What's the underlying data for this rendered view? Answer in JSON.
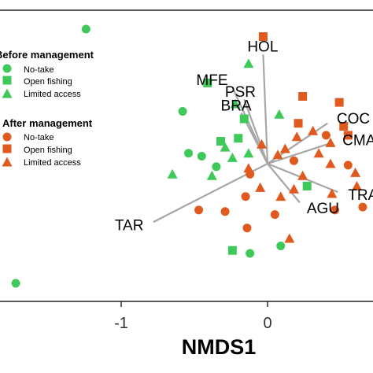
{
  "chart_data": {
    "type": "scatter",
    "title": "",
    "xlabel": "NMDS1",
    "ylabel": "",
    "xlim": [
      -1.85,
      0.65
    ],
    "ylim": [
      -1.1,
      1.0
    ],
    "x_ticks": [
      -1,
      0
    ],
    "x_tick_labels": [
      "-1",
      "0"
    ],
    "grid": false,
    "legend_position": "left",
    "colors": {
      "before": "#3ec95a",
      "after": "#e0591f",
      "vector": "#a6a6a6"
    },
    "legend": [
      {
        "title": "Before management",
        "entries": [
          {
            "label": "No-take",
            "shape": "circle"
          },
          {
            "label": "Open fishing",
            "shape": "square"
          },
          {
            "label": "Limited access",
            "shape": "triangle"
          }
        ]
      },
      {
        "title": "After management",
        "entries": [
          {
            "label": "No-take",
            "shape": "circle"
          },
          {
            "label": "Open fishing",
            "shape": "square"
          },
          {
            "label": "Limited access",
            "shape": "triangle"
          }
        ]
      }
    ],
    "series": [
      {
        "name": "Before management – No-take",
        "color": "#3ec95a",
        "shape": "circle",
        "points": [
          [
            -1.24,
            0.9
          ],
          [
            -1.72,
            -0.8
          ],
          [
            -0.58,
            0.35
          ],
          [
            -0.45,
            0.05
          ],
          [
            -0.54,
            0.07
          ],
          [
            -0.35,
            -0.02
          ],
          [
            -0.12,
            -0.6
          ],
          [
            0.09,
            -0.55
          ]
        ]
      },
      {
        "name": "Before management – Open fishing",
        "color": "#3ec95a",
        "shape": "square",
        "points": [
          [
            -0.41,
            0.54
          ],
          [
            -0.16,
            0.3
          ],
          [
            -0.2,
            0.17
          ],
          [
            -0.32,
            0.15
          ],
          [
            -0.24,
            -0.58
          ],
          [
            0.27,
            -0.15
          ]
        ]
      },
      {
        "name": "Before management – Limited access",
        "color": "#3ec95a",
        "shape": "triangle",
        "points": [
          [
            -0.13,
            0.67
          ],
          [
            -0.22,
            0.4
          ],
          [
            -0.29,
            0.11
          ],
          [
            -0.24,
            0.04
          ],
          [
            -0.65,
            -0.07
          ],
          [
            -0.38,
            -0.08
          ],
          [
            0.08,
            0.33
          ],
          [
            -0.13,
            0.07
          ]
        ]
      },
      {
        "name": "After management – No-take",
        "color": "#e0591f",
        "shape": "circle",
        "points": [
          [
            0.4,
            0.19
          ],
          [
            0.18,
            0.02
          ],
          [
            -0.12,
            -0.07
          ],
          [
            -0.15,
            -0.22
          ],
          [
            -0.47,
            -0.31
          ],
          [
            -0.29,
            -0.32
          ],
          [
            -0.14,
            -0.43
          ],
          [
            0.05,
            -0.34
          ],
          [
            0.46,
            -0.31
          ],
          [
            0.55,
            -0.01
          ],
          [
            0.65,
            -0.29
          ]
        ]
      },
      {
        "name": "After management – Open fishing",
        "color": "#e0591f",
        "shape": "square",
        "points": [
          [
            -0.03,
            0.85
          ],
          [
            0.24,
            0.45
          ],
          [
            0.49,
            0.41
          ],
          [
            0.21,
            0.27
          ],
          [
            0.52,
            0.25
          ],
          [
            0.55,
            0.19
          ]
        ]
      },
      {
        "name": "After management – Limited access",
        "color": "#e0591f",
        "shape": "triangle",
        "points": [
          [
            0.31,
            0.22
          ],
          [
            0.2,
            0.18
          ],
          [
            0.43,
            0.14
          ],
          [
            0.35,
            0.07
          ],
          [
            0.12,
            0.1
          ],
          [
            0.07,
            0.06
          ],
          [
            0.43,
            0.0
          ],
          [
            -0.13,
            -0.03
          ],
          [
            0.24,
            -0.08
          ],
          [
            0.6,
            -0.06
          ],
          [
            0.18,
            -0.17
          ],
          [
            0.09,
            -0.22
          ],
          [
            -0.05,
            -0.16
          ],
          [
            0.44,
            -0.2
          ],
          [
            0.61,
            -0.15
          ],
          [
            0.15,
            -0.5
          ],
          [
            -0.04,
            0.13
          ]
        ]
      }
    ],
    "vectors": [
      {
        "label": "HOL",
        "x": -0.03,
        "y": 0.73
      },
      {
        "label": "MFE",
        "x": -0.24,
        "y": 0.51
      },
      {
        "label": "PSR",
        "x": -0.16,
        "y": 0.43
      },
      {
        "label": "BRA",
        "x": -0.18,
        "y": 0.34
      },
      {
        "label": "COC",
        "x": 0.41,
        "y": 0.27
      },
      {
        "label": "CMA",
        "x": 0.44,
        "y": 0.14
      },
      {
        "label": "TRA",
        "x": 0.48,
        "y": -0.19
      },
      {
        "label": "AGU",
        "x": 0.22,
        "y": -0.26
      },
      {
        "label": "TAR",
        "x": -0.78,
        "y": -0.39
      }
    ]
  }
}
